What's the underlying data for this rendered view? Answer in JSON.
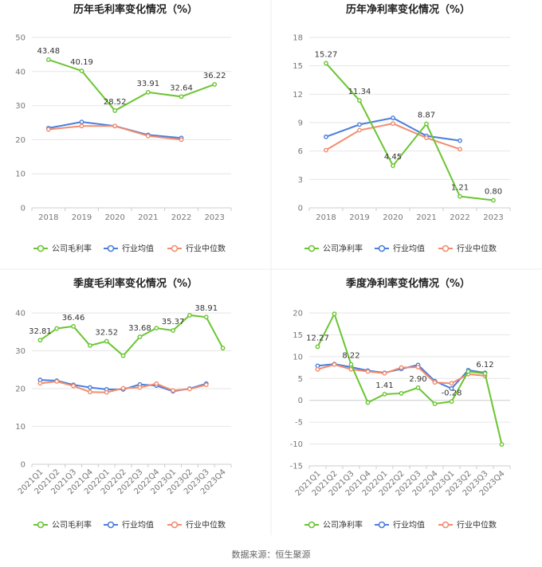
{
  "source": "数据来源：恒生聚源",
  "legend_items": {
    "gross": [
      "公司毛利率",
      "行业均值",
      "行业中位数"
    ],
    "net": [
      "公司净利率",
      "行业均值",
      "行业中位数"
    ]
  },
  "colors": {
    "company": "#6ac531",
    "mean": "#4a7edb",
    "median": "#f28c6e",
    "grid": "#e6e6e6",
    "axis": "#cccccc"
  },
  "chart_data": [
    {
      "id": "annual-gross",
      "type": "line",
      "title": "历年毛利率变化情况（%）",
      "categories": [
        "2018",
        "2019",
        "2020",
        "2021",
        "2022",
        "2023"
      ],
      "ylim": [
        0,
        50
      ],
      "yticks": [
        0,
        10,
        20,
        30,
        40,
        50
      ],
      "series": [
        {
          "name": "公司毛利率",
          "values": [
            43.48,
            40.19,
            28.52,
            33.91,
            32.64,
            36.22
          ],
          "labels": [
            "43.48",
            "40.19",
            "28.52",
            "33.91",
            "32.64",
            "36.22"
          ]
        },
        {
          "name": "行业均值",
          "values": [
            23.4,
            25.2,
            24.0,
            21.4,
            20.5,
            null
          ]
        },
        {
          "name": "行业中位数",
          "values": [
            23.0,
            24.0,
            24.0,
            21.1,
            20.0,
            null
          ]
        }
      ]
    },
    {
      "id": "annual-net",
      "type": "line",
      "title": "历年净利率变化情况（%）",
      "categories": [
        "2018",
        "2019",
        "2020",
        "2021",
        "2022",
        "2023"
      ],
      "ylim": [
        0,
        18
      ],
      "yticks": [
        0,
        3,
        6,
        9,
        12,
        15,
        18
      ],
      "series": [
        {
          "name": "公司净利率",
          "values": [
            15.27,
            11.34,
            4.45,
            8.87,
            1.21,
            0.8
          ],
          "labels": [
            "15.27",
            "11.34",
            "4.45",
            "8.87",
            "1.21",
            "0.80"
          ]
        },
        {
          "name": "行业均值",
          "values": [
            7.5,
            8.8,
            9.5,
            7.6,
            7.1,
            null
          ]
        },
        {
          "name": "行业中位数",
          "values": [
            6.1,
            8.2,
            8.9,
            7.4,
            6.2,
            null
          ]
        }
      ]
    },
    {
      "id": "quarterly-gross",
      "type": "line",
      "title": "季度毛利率变化情况（%）",
      "categories": [
        "2021Q1",
        "2021Q2",
        "2021Q3",
        "2021Q4",
        "2022Q1",
        "2022Q2",
        "2022Q3",
        "2022Q4",
        "2023Q1",
        "2023Q2",
        "2023Q3",
        "2023Q4"
      ],
      "ylim": [
        0,
        40
      ],
      "yticks": [
        0,
        10,
        20,
        30,
        40
      ],
      "series": [
        {
          "name": "公司毛利率",
          "values": [
            32.81,
            35.9,
            36.46,
            31.4,
            32.52,
            28.7,
            33.68,
            36.0,
            35.37,
            39.4,
            38.91,
            30.7
          ],
          "labels": [
            "32.81",
            null,
            "36.46",
            null,
            "32.52",
            null,
            "33.68",
            null,
            "35.37",
            null,
            "38.91",
            null
          ]
        },
        {
          "name": "行业均值",
          "values": [
            22.3,
            22.1,
            21.0,
            20.3,
            19.8,
            19.8,
            21.1,
            20.8,
            19.3,
            20.0,
            21.3,
            null
          ]
        },
        {
          "name": "行业中位数",
          "values": [
            21.4,
            21.9,
            20.7,
            19.1,
            19.0,
            20.1,
            20.3,
            21.3,
            19.5,
            19.9,
            21.0,
            null
          ]
        }
      ]
    },
    {
      "id": "quarterly-net",
      "type": "line",
      "title": "季度净利率变化情况（%）",
      "categories": [
        "2021Q1",
        "2021Q2",
        "2021Q3",
        "2021Q4",
        "2022Q1",
        "2022Q2",
        "2022Q3",
        "2022Q4",
        "2023Q1",
        "2023Q2",
        "2023Q3",
        "2023Q4"
      ],
      "ylim": [
        -15,
        20
      ],
      "yticks": [
        -15,
        -10,
        -5,
        0,
        5,
        10,
        15,
        20
      ],
      "series": [
        {
          "name": "公司净利率",
          "values": [
            12.27,
            19.8,
            8.22,
            -0.5,
            1.41,
            1.6,
            2.9,
            -0.8,
            -0.28,
            6.6,
            6.12,
            -10.1
          ],
          "labels": [
            "12.27",
            null,
            "8.22",
            null,
            "1.41",
            null,
            "2.90",
            null,
            "-0.28",
            null,
            "6.12",
            null
          ]
        },
        {
          "name": "行业均值",
          "values": [
            7.9,
            8.3,
            7.6,
            6.8,
            6.3,
            7.2,
            8.1,
            4.4,
            2.7,
            6.9,
            6.3,
            null
          ]
        },
        {
          "name": "行业中位数",
          "values": [
            7.1,
            8.2,
            7.1,
            6.6,
            6.2,
            7.5,
            7.6,
            4.1,
            3.9,
            6.0,
            5.6,
            null
          ]
        }
      ]
    }
  ]
}
